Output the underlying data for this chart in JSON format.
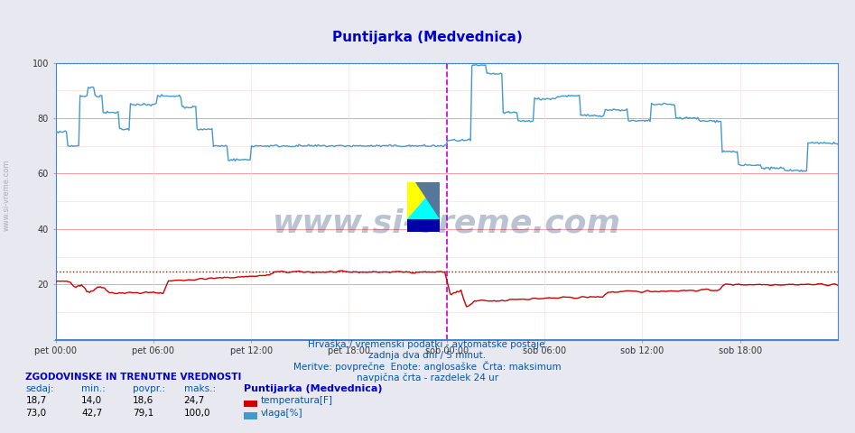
{
  "title": "Puntijarka (Medvednica)",
  "title_color": "#0000cc",
  "bg_color": "#e8e8f0",
  "plot_bg_color": "#ffffff",
  "grid_color_major": "#ff9999",
  "grid_color_minor": "#ffdddd",
  "ylim": [
    0,
    100
  ],
  "xlabel_ticks": [
    "pet 00:00",
    "pet 06:00",
    "pet 12:00",
    "pet 18:00",
    "sob 00:00",
    "sob 06:00",
    "sob 12:00",
    "sob 18:00"
  ],
  "xtick_positions": [
    0.0,
    0.25,
    0.5,
    0.75,
    1.0,
    1.25,
    1.5,
    1.75
  ],
  "temp_color": "#cc0000",
  "hum_color": "#4499cc",
  "temp_max_line": 24.7,
  "hum_max_line": 100.0,
  "vline_color": "#cc00cc",
  "vline_pos": 1.0,
  "subtitle1": "Hrvaška / vremenski podatki - avtomatske postaje.",
  "subtitle2": "zadnja dva dni / 5 minut.",
  "subtitle3": "Meritve: povprečne  Enote: anglosaške  Črta: maksimum",
  "subtitle4": "navpična črta - razdelek 24 ur",
  "subtitle_color": "#0055aa",
  "watermark": "www.si-vreme.com",
  "watermark_color": "#1a3a6a",
  "watermark_alpha": 0.3,
  "legend_title": "Puntijarka (Medvednica)",
  "legend_title_color": "#0000cc",
  "stats_header": "ZGODOVINSKE IN TRENUTNE VREDNOSTI",
  "stats_header_color": "#0000cc",
  "col_headers": [
    "sedaj:",
    "min.:",
    "povpr.:",
    "maks.:"
  ],
  "col_header_color": "#0055aa",
  "temp_values": [
    "18,7",
    "14,0",
    "18,6",
    "24,7"
  ],
  "hum_values": [
    "73,0",
    "42,7",
    "79,1",
    "100,0"
  ],
  "temp_label": "temperatura[F]",
  "hum_label": "vlaga[%]",
  "value_color": "#000000",
  "label_color": "#0055aa",
  "left_watermark": "www.si-vreme.com"
}
